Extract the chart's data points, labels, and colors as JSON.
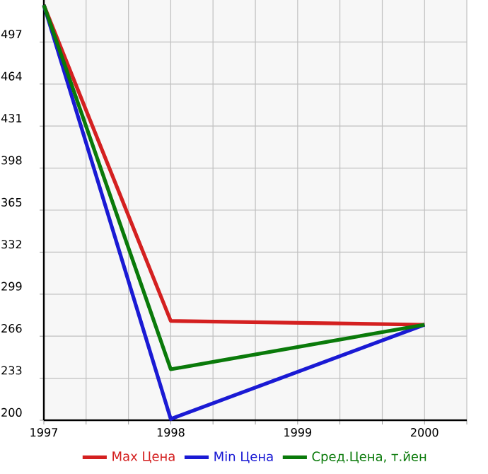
{
  "chart_data": {
    "type": "line",
    "x": [
      1997,
      1998,
      2000
    ],
    "series": [
      {
        "name": "Max Цена",
        "color": "#d42020",
        "values": [
          526,
          278,
          275
        ]
      },
      {
        "name": "Min Цена",
        "color": "#1a1ad4",
        "values": [
          526,
          201,
          275
        ]
      },
      {
        "name": "Сред.Цена, т.йен",
        "color": "#0a7a0a",
        "values": [
          526,
          240,
          275
        ]
      }
    ],
    "xlim": [
      1997,
      2000.333
    ],
    "xticks": [
      1997,
      {
        "value": 1997.333,
        "label": null
      },
      {
        "value": 1997.667,
        "label": null
      },
      1998,
      {
        "value": 1998.333,
        "label": null
      },
      {
        "value": 1998.667,
        "label": null
      },
      1999,
      {
        "value": 1999.333,
        "label": null
      },
      {
        "value": 1999.667,
        "label": null
      },
      2000,
      {
        "value": 2000.333,
        "label": null
      }
    ],
    "ylim": [
      200,
      530
    ],
    "yticks": [
      200,
      233,
      266,
      299,
      332,
      365,
      398,
      431,
      464,
      497
    ],
    "grid": true,
    "legend": "bottom",
    "marker": "none",
    "line_style": "solid"
  }
}
